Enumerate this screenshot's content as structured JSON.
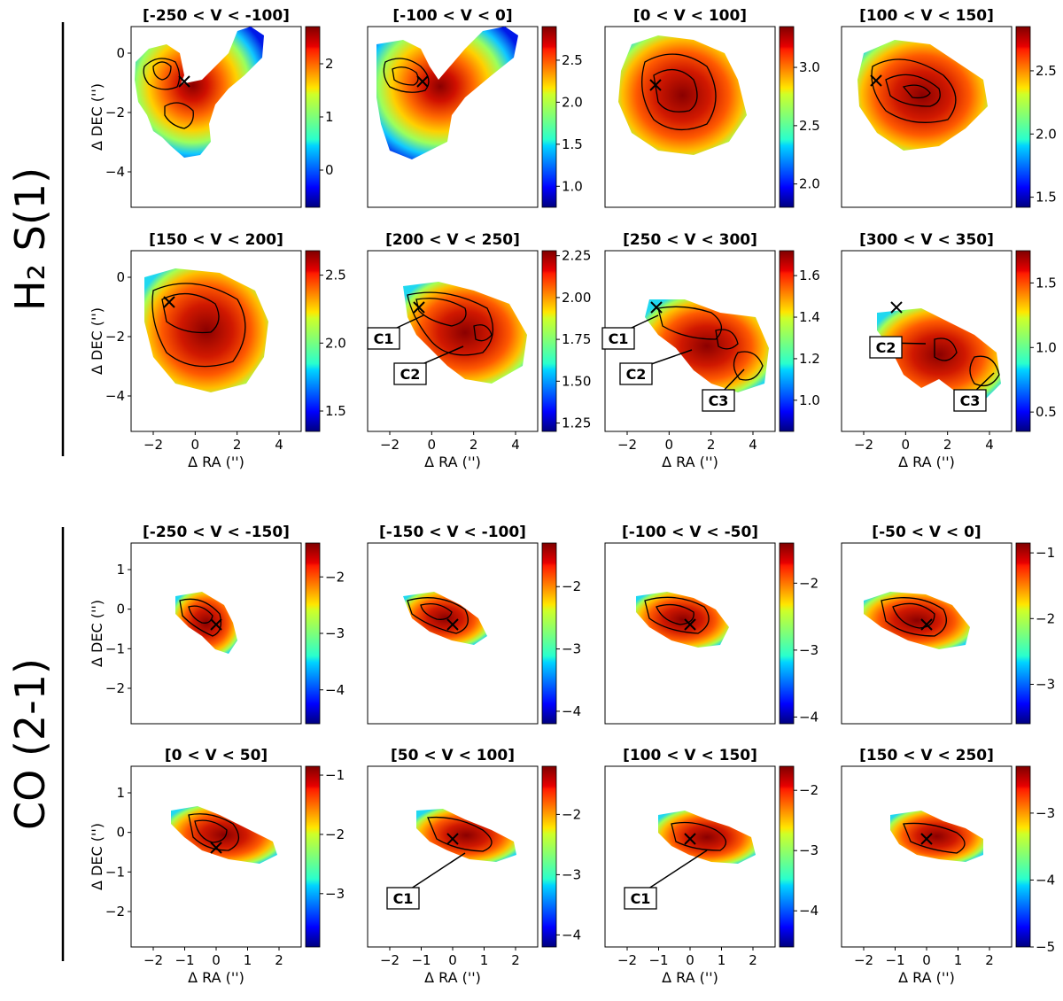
{
  "figure": {
    "h2_label": "H₂ S(1)",
    "co_label": "CO (2-1)"
  },
  "chart_data": [
    {
      "type": "heatmap",
      "group": "h2",
      "title": "[-250 < V < -100]",
      "xlabel": "",
      "ylabel": "Δ DEC ('')",
      "xticks": [],
      "yticks": [
        "0",
        "−2",
        "−4"
      ],
      "cbar_ticks": [
        "0",
        "1",
        "2"
      ],
      "cbar_range": [
        -0.7,
        2.7
      ],
      "blob": "h2_a",
      "labels": []
    },
    {
      "type": "heatmap",
      "group": "h2",
      "title": "[-100 < V < 0]",
      "xlabel": "",
      "ylabel": "",
      "xticks": [],
      "yticks": [],
      "cbar_ticks": [
        "1.0",
        "1.5",
        "2.0",
        "2.5"
      ],
      "cbar_range": [
        0.75,
        2.9
      ],
      "blob": "h2_b",
      "labels": []
    },
    {
      "type": "heatmap",
      "group": "h2",
      "title": "[0 < V < 100]",
      "xlabel": "",
      "ylabel": "",
      "xticks": [],
      "yticks": [],
      "cbar_ticks": [
        "2.0",
        "2.5",
        "3.0"
      ],
      "cbar_range": [
        1.8,
        3.35
      ],
      "blob": "h2_c",
      "labels": []
    },
    {
      "type": "heatmap",
      "group": "h2",
      "title": "[100 < V < 150]",
      "xlabel": "",
      "ylabel": "",
      "xticks": [],
      "yticks": [],
      "cbar_ticks": [
        "1.5",
        "2.0",
        "2.5"
      ],
      "cbar_range": [
        1.42,
        2.85
      ],
      "blob": "h2_d",
      "labels": []
    },
    {
      "type": "heatmap",
      "group": "h2",
      "title": "[150 < V < 200]",
      "xlabel": "Δ RA ('')",
      "ylabel": "Δ DEC ('')",
      "xticks": [
        "−2",
        "0",
        "2",
        "4"
      ],
      "yticks": [
        "0",
        "−2",
        "−4"
      ],
      "cbar_ticks": [
        "1.5",
        "2.0",
        "2.5"
      ],
      "cbar_range": [
        1.35,
        2.68
      ],
      "blob": "h2_e",
      "labels": []
    },
    {
      "type": "heatmap",
      "group": "h2",
      "title": "[200 < V < 250]",
      "xlabel": "Δ RA ('')",
      "ylabel": "",
      "xticks": [
        "−2",
        "0",
        "2",
        "4"
      ],
      "yticks": [],
      "cbar_ticks": [
        "1.25",
        "1.50",
        "1.75",
        "2.00",
        "2.25"
      ],
      "cbar_range": [
        1.2,
        2.28
      ],
      "blob": "h2_f",
      "labels": [
        "C1",
        "C2"
      ]
    },
    {
      "type": "heatmap",
      "group": "h2",
      "title": "[250 < V < 300]",
      "xlabel": "Δ RA ('')",
      "ylabel": "",
      "xticks": [
        "−2",
        "0",
        "2",
        "4"
      ],
      "yticks": [],
      "cbar_ticks": [
        "1.0",
        "1.2",
        "1.4",
        "1.6"
      ],
      "cbar_range": [
        0.85,
        1.72
      ],
      "blob": "h2_g",
      "labels": [
        "C1",
        "C2",
        "C3"
      ]
    },
    {
      "type": "heatmap",
      "group": "h2",
      "title": "[300 < V < 350]",
      "xlabel": "Δ RA ('')",
      "ylabel": "",
      "xticks": [
        "−2",
        "0",
        "2",
        "4"
      ],
      "yticks": [],
      "cbar_ticks": [
        "0.5",
        "1.0",
        "1.5"
      ],
      "cbar_range": [
        0.35,
        1.75
      ],
      "blob": "h2_h",
      "labels": [
        "C2",
        "C3"
      ]
    },
    {
      "type": "heatmap",
      "group": "co",
      "title": "[-250 < V < -150]",
      "xlabel": "",
      "ylabel": "Δ DEC ('')",
      "xticks": [],
      "yticks": [
        "1",
        "0",
        "−1",
        "−2"
      ],
      "cbar_ticks": [
        "−2",
        "−3",
        "−4"
      ],
      "cbar_range": [
        -4.6,
        -1.4
      ],
      "blob": "co_a",
      "labels": []
    },
    {
      "type": "heatmap",
      "group": "co",
      "title": "[-150 < V < -100]",
      "xlabel": "",
      "ylabel": "",
      "xticks": [],
      "yticks": [],
      "cbar_ticks": [
        "−2",
        "−3",
        "−4"
      ],
      "cbar_range": [
        -4.2,
        -1.3
      ],
      "blob": "co_b",
      "labels": []
    },
    {
      "type": "heatmap",
      "group": "co",
      "title": "[-100 < V < -50]",
      "xlabel": "",
      "ylabel": "",
      "xticks": [],
      "yticks": [],
      "cbar_ticks": [
        "−2",
        "−3",
        "−4"
      ],
      "cbar_range": [
        -4.1,
        -1.4
      ],
      "blob": "co_c",
      "labels": []
    },
    {
      "type": "heatmap",
      "group": "co",
      "title": "[-50 < V < 0]",
      "xlabel": "",
      "ylabel": "",
      "xticks": [],
      "yticks": [],
      "cbar_ticks": [
        "−1",
        "−2",
        "−3"
      ],
      "cbar_range": [
        -3.6,
        -0.85
      ],
      "blob": "co_d",
      "labels": []
    },
    {
      "type": "heatmap",
      "group": "co",
      "title": "[0 < V < 50]",
      "xlabel": "Δ RA ('')",
      "ylabel": "Δ DEC ('')",
      "xticks": [
        "−2",
        "−1",
        "0",
        "1",
        "2"
      ],
      "yticks": [
        "1",
        "0",
        "−1",
        "−2"
      ],
      "cbar_ticks": [
        "−1",
        "−2",
        "−3"
      ],
      "cbar_range": [
        -3.9,
        -0.85
      ],
      "blob": "co_e",
      "labels": []
    },
    {
      "type": "heatmap",
      "group": "co",
      "title": "[50 < V < 100]",
      "xlabel": "Δ RA ('')",
      "ylabel": "",
      "xticks": [
        "−2",
        "−1",
        "0",
        "1",
        "2"
      ],
      "yticks": [],
      "cbar_ticks": [
        "−2",
        "−3",
        "−4"
      ],
      "cbar_range": [
        -4.2,
        -1.2
      ],
      "blob": "co_f",
      "labels": [
        "C1"
      ]
    },
    {
      "type": "heatmap",
      "group": "co",
      "title": "[100 < V < 150]",
      "xlabel": "Δ RA ('')",
      "ylabel": "",
      "xticks": [
        "−2",
        "−1",
        "0",
        "1",
        "2"
      ],
      "yticks": [],
      "cbar_ticks": [
        "−2",
        "−3",
        "−4"
      ],
      "cbar_range": [
        -4.6,
        -1.6
      ],
      "blob": "co_g",
      "labels": [
        "C1"
      ]
    },
    {
      "type": "heatmap",
      "group": "co",
      "title": "[150 < V < 250]",
      "xlabel": "Δ RA ('')",
      "ylabel": "",
      "xticks": [
        "−2",
        "−1",
        "0",
        "1",
        "2"
      ],
      "yticks": [],
      "cbar_ticks": [
        "−3",
        "−4",
        "−5"
      ],
      "cbar_range": [
        -5.0,
        -2.3
      ],
      "blob": "co_h",
      "labels": []
    }
  ]
}
